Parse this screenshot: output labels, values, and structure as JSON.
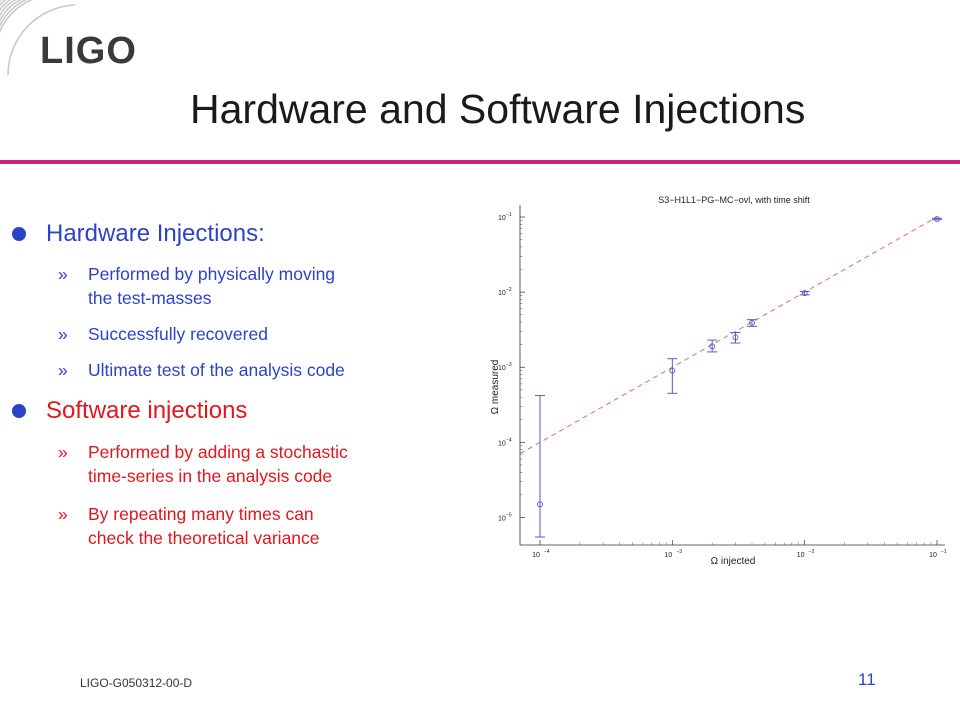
{
  "logo": {
    "text": "LIGO"
  },
  "slide": {
    "title": "Hardware and Software Injections",
    "footer_id": "LIGO-G050312-00-D",
    "page_number": "11"
  },
  "colors": {
    "accent_rule": "#c8247e",
    "blue_text": "#2d43c7",
    "red_text": "#e2161d"
  },
  "bullets": [
    {
      "text": "Hardware Injections:",
      "subs": [
        "Performed by physically moving",
        "the test-masses",
        "Successfully recovered",
        "Ultimate test of the analysis code"
      ]
    },
    {
      "text": "Software injections",
      "subs": [
        "Performed by adding a stochastic",
        "time-series in the analysis code",
        "By repeating many times can",
        "check the theoretical variance"
      ]
    }
  ],
  "sub_marker": "»",
  "chart_data": {
    "type": "scatter",
    "title": "S3−H1L1−PG−MC−ovl, with time shift",
    "xlabel": "Ω injected",
    "ylabel": "Ω measured",
    "x_scale": "log",
    "y_scale": "log",
    "xlim": [
      0.0001,
      0.1
    ],
    "ylim": [
      5.5e-06,
      0.1
    ],
    "x_ticks": [
      {
        "value": 0.0001,
        "base": "10",
        "exp": "−4"
      },
      {
        "value": 0.001,
        "base": "10",
        "exp": "−3"
      },
      {
        "value": 0.01,
        "base": "10",
        "exp": "−2"
      },
      {
        "value": 0.1,
        "base": "10",
        "exp": "−1"
      }
    ],
    "y_ticks": [
      {
        "value": 1e-05,
        "base": "10",
        "exp": "−5"
      },
      {
        "value": 0.0001,
        "base": "10",
        "exp": "−4"
      },
      {
        "value": 0.001,
        "base": "10",
        "exp": "−3"
      },
      {
        "value": 0.01,
        "base": "10",
        "exp": "−2"
      },
      {
        "value": 0.1,
        "base": "10",
        "exp": "−1"
      }
    ],
    "grid": false,
    "reference_line": {
      "style": "dashed",
      "color": "#e06060",
      "slope": 1
    },
    "points": [
      {
        "x": 0.0001,
        "y": 1.5e-05,
        "y_low": 5.5e-06,
        "y_high": 0.00042
      },
      {
        "x": 0.001,
        "y": 0.0009,
        "y_low": 0.00045,
        "y_high": 0.0013
      },
      {
        "x": 0.002,
        "y": 0.0019,
        "y_low": 0.0016,
        "y_high": 0.0023
      },
      {
        "x": 0.003,
        "y": 0.0025,
        "y_low": 0.0021,
        "y_high": 0.0029
      },
      {
        "x": 0.004,
        "y": 0.0039,
        "y_low": 0.0035,
        "y_high": 0.0043
      },
      {
        "x": 0.01,
        "y": 0.0097,
        "y_low": 0.0092,
        "y_high": 0.0102
      },
      {
        "x": 0.1,
        "y": 0.094,
        "y_low": 0.092,
        "y_high": 0.096
      }
    ],
    "point_color": "#5a5ac8"
  }
}
